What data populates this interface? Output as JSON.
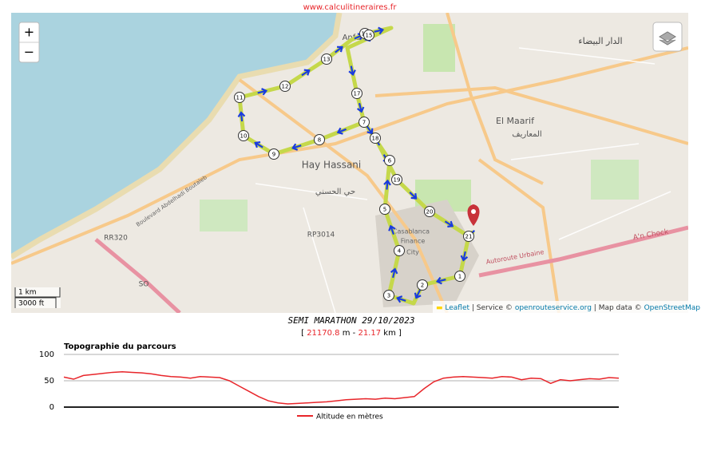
{
  "header": {
    "site": "www.calculitineraires.fr"
  },
  "map": {
    "zoom_in": "+",
    "zoom_out": "−",
    "labels": [
      "Hay Hassani",
      "حي الحسني",
      "El Maarif",
      "المعاريف",
      "الدار البيضاء",
      "Anfa",
      "RR320",
      "RP3014",
      "Casablanca",
      "Finance",
      "City",
      "SO",
      "Autoroute Urbaine",
      "A'n Chock",
      "Boulevard Abdelhadi Boutaleb"
    ],
    "markers": [
      1,
      2,
      3,
      4,
      5,
      6,
      7,
      8,
      9,
      10,
      11,
      12,
      13,
      14,
      15,
      17,
      18,
      19,
      20,
      21
    ],
    "scale": {
      "metric": "1 km",
      "imperial": "3000 ft"
    },
    "attribution": {
      "leaflet": "Leaflet",
      "service": "| Service ©",
      "service_link": "openrouteservice.org",
      "data": "| Map data ©",
      "data_link": "OpenStreetMap"
    }
  },
  "route": {
    "title": "SEMI MARATHON 29/10/2023",
    "open": "[",
    "meters": 21170.8,
    "m_sep": "m -",
    "km": 21.17,
    "close": "km ]"
  },
  "chart_data": {
    "type": "line",
    "title": "Topographie du parcours",
    "series": [
      {
        "name": "Altitude en mètres",
        "color": "#e8252a",
        "values": [
          57,
          53,
          60,
          62,
          64,
          66,
          67,
          66,
          65,
          63,
          60,
          58,
          57,
          55,
          58,
          57,
          56,
          50,
          40,
          30,
          20,
          12,
          8,
          6,
          7,
          8,
          9,
          10,
          12,
          14,
          15,
          16,
          15,
          17,
          16,
          18,
          20,
          35,
          48,
          55,
          57,
          58,
          57,
          56,
          55,
          58,
          57,
          52,
          55,
          54,
          45,
          52,
          50,
          52,
          54,
          53,
          56,
          55
        ]
      }
    ],
    "ylim": [
      0,
      100
    ],
    "yticks": [
      0,
      50,
      100
    ],
    "grid": true,
    "legend": "bottom"
  }
}
